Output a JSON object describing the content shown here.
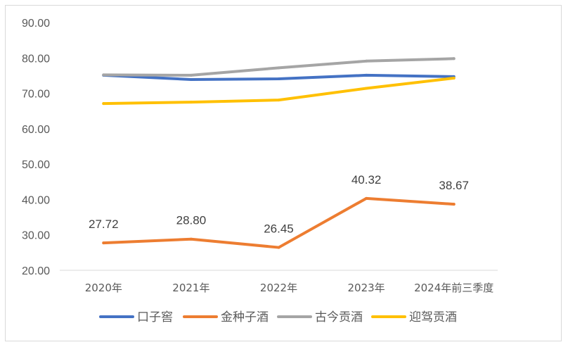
{
  "chart_data": {
    "type": "line",
    "title": "",
    "xlabel": "",
    "ylabel": "",
    "categories": [
      "2020年",
      "2021年",
      "2022年",
      "2023年",
      "2024年前三季度"
    ],
    "ylim": [
      20,
      90
    ],
    "yticks": [
      "20.00",
      "30.00",
      "40.00",
      "50.00",
      "60.00",
      "70.00",
      "80.00",
      "90.00"
    ],
    "grid": false,
    "legend": "bottom",
    "series": [
      {
        "name": "口子窖",
        "color": "#4472C4",
        "values": [
          75.1,
          73.9,
          74.1,
          75.1,
          74.7
        ]
      },
      {
        "name": "金种子酒",
        "color": "#ED7D31",
        "values": [
          27.72,
          28.8,
          26.45,
          40.32,
          38.67
        ],
        "labels": [
          "27.72",
          "28.80",
          "26.45",
          "40.32",
          "38.67"
        ]
      },
      {
        "name": "古今贡酒",
        "color": "#A5A5A5",
        "values": [
          75.2,
          75.1,
          77.2,
          79.1,
          79.8
        ]
      },
      {
        "name": "迎驾贡酒",
        "color": "#FFC000",
        "values": [
          67.1,
          67.5,
          68.1,
          71.4,
          74.3
        ]
      }
    ]
  }
}
